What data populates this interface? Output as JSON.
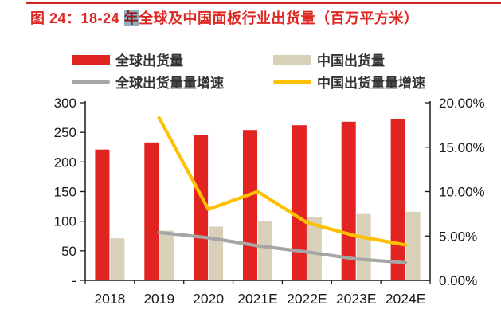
{
  "title": {
    "prefix": "图 24：18-24 ",
    "highlight": "年",
    "suffix": "全球及中国面板行业出货量（百万平方米）"
  },
  "colors": {
    "title_red": "#df2721",
    "top_rule_red": "#d4251c",
    "bar_global_red": "#e12421",
    "bar_china_tan": "#d9d0ba",
    "line_global_gray": "#a6a6a6",
    "line_china_yellow": "#ffc000",
    "axis_text": "#1a1a1a",
    "highlight_selection": "#92acc2"
  },
  "chart_data": {
    "type": "bar+line",
    "title": "图 24：18-24 年全球及中国面板行业出货量（百万平方米）",
    "categories": [
      "2018",
      "2019",
      "2020",
      "2021E",
      "2022E",
      "2023E",
      "2024E"
    ],
    "series": [
      {
        "name": "全球出货量",
        "type": "bar",
        "axis": "left",
        "color": "#e12421",
        "values": [
          221,
          233,
          245,
          254,
          262,
          268,
          273
        ]
      },
      {
        "name": "中国出货量",
        "type": "bar",
        "axis": "left",
        "color": "#d9d0ba",
        "values": [
          71,
          84,
          91,
          100,
          107,
          112,
          116
        ]
      },
      {
        "name": "全球出货量量增速",
        "type": "line",
        "axis": "right",
        "color": "#a6a6a6",
        "unit": "%",
        "values": [
          null,
          5.4,
          4.8,
          3.9,
          3.2,
          2.4,
          2.0
        ]
      },
      {
        "name": "中国出货量量增速",
        "type": "line",
        "axis": "right",
        "color": "#ffc000",
        "unit": "%",
        "values": [
          null,
          18.3,
          8.0,
          10.0,
          6.5,
          5.0,
          4.0
        ]
      }
    ],
    "left_axis": {
      "min": 0,
      "max": 300,
      "tick_labels": [
        "300",
        "250",
        "200",
        "150",
        "100",
        "50",
        "-"
      ]
    },
    "right_axis": {
      "min": 0,
      "max": 20,
      "tick_labels": [
        "20.00%",
        "15.00%",
        "10.00%",
        "5.00%",
        "0.00%"
      ]
    },
    "legend_position": "top",
    "grid": false
  }
}
